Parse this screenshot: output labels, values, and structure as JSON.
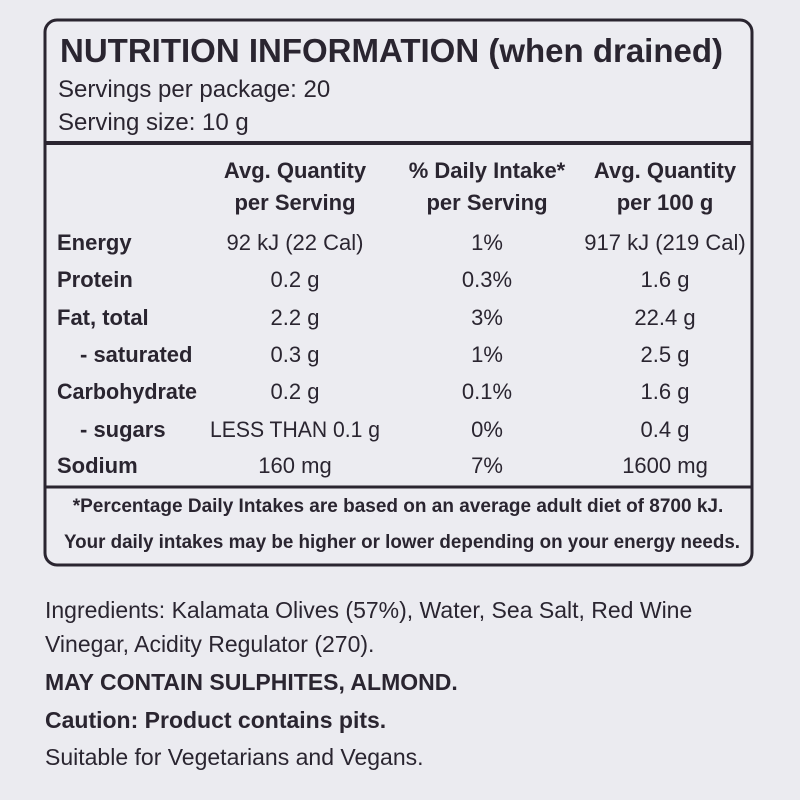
{
  "panel": {
    "title": "NUTRITION INFORMATION (when drained)",
    "servings_per_package": "Servings per package: 20",
    "serving_size": "Serving size: 10 g",
    "table": {
      "headers": [
        {
          "line1": "Avg. Quantity",
          "line2": "per Serving"
        },
        {
          "line1": "% Daily Intake*",
          "line2": "per Serving"
        },
        {
          "line1": "Avg. Quantity",
          "line2": "per 100 g"
        }
      ],
      "rows": [
        [
          "Energy",
          "92 kJ (22 Cal)",
          "1%",
          "917 kJ (219 Cal)"
        ],
        [
          "Protein",
          "0.2 g",
          "0.3%",
          "1.6 g"
        ],
        [
          "Fat, total",
          "2.2 g",
          "3%",
          "22.4 g"
        ],
        [
          "- saturated",
          "0.3 g",
          "1%",
          "2.5 g"
        ],
        [
          "Carbohydrate",
          "0.2 g",
          "0.1%",
          "1.6 g"
        ],
        [
          "- sugars",
          "LESS THAN 0.1 g",
          "0%",
          "0.4 g"
        ],
        [
          "Sodium",
          "160 mg",
          "7%",
          "1600 mg"
        ]
      ]
    },
    "footnote": [
      "*Percentage Daily Intakes are based on an average adult diet of 8700 kJ.",
      "Your daily intakes may be higher or lower depending on your energy needs."
    ]
  },
  "ingredients": [
    "Ingredients: Kalamata Olives (57%), Water, Sea Salt, Red Wine",
    "Vinegar, Acidity Regulator (270)."
  ],
  "allergens": "MAY CONTAIN SULPHITES, ALMOND.",
  "caution": "Caution: Product contains pits.",
  "suitable": "Suitable for Vegetarians and Vegans."
}
